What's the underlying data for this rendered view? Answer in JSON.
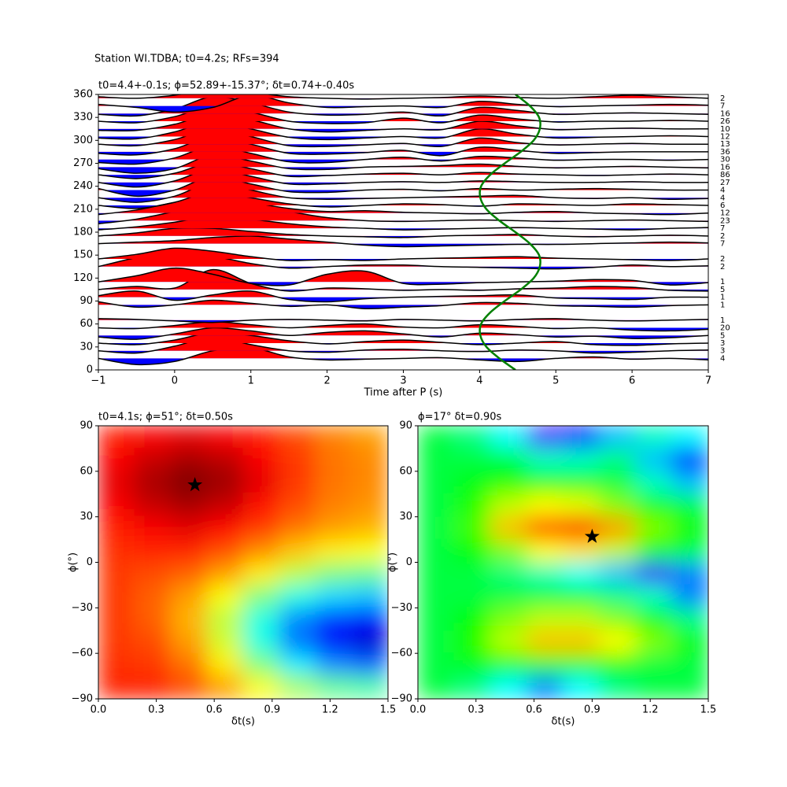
{
  "title": "Station WI.TDBA; t0=4.2s; RFs=394",
  "chart_data": [
    {
      "type": "wiggle",
      "title": "t0=4.4+-0.1s; ϕ=52.89+-15.37°; δt=0.74+-0.40s",
      "xlabel": "Time after P (s)",
      "xlim": [
        -1,
        7
      ],
      "ylim": [
        0,
        360
      ],
      "xticks": [
        {
          "value": -1,
          "label": "−1"
        },
        0,
        1,
        2,
        3,
        4,
        5,
        6,
        7
      ],
      "yticks": [
        0,
        30,
        60,
        90,
        120,
        150,
        180,
        210,
        240,
        270,
        300,
        330,
        360
      ],
      "positive_color": "#ff0000",
      "negative_color": "#0000ff",
      "x": [
        -1,
        -0.5,
        0,
        0.5,
        1,
        1.5,
        2,
        2.5,
        3,
        3.5,
        4,
        4.5,
        5,
        5.5,
        6,
        6.5,
        7
      ],
      "traces": [
        {
          "baz": 15,
          "count": 4,
          "values": [
            0,
            -8,
            -4,
            10,
            14,
            2,
            -2,
            -1,
            0,
            1,
            -2,
            -4,
            0,
            2,
            -1,
            0,
            -2
          ]
        },
        {
          "baz": 25,
          "count": 3,
          "values": [
            0,
            -3,
            6,
            18,
            8,
            0,
            -2,
            1,
            2,
            0,
            -1,
            1,
            0,
            -3,
            -2,
            0,
            1
          ]
        },
        {
          "baz": 35,
          "count": 3,
          "values": [
            0,
            -2,
            4,
            14,
            10,
            3,
            -1,
            2,
            4,
            1,
            -2,
            0,
            2,
            -2,
            -3,
            -1,
            0
          ]
        },
        {
          "baz": 45,
          "count": 5,
          "values": [
            -2,
            -5,
            2,
            10,
            6,
            0,
            4,
            6,
            2,
            -2,
            3,
            1,
            -2,
            -1,
            -4,
            -3,
            0
          ]
        },
        {
          "baz": 55,
          "count": 20,
          "values": [
            0,
            -1,
            3,
            8,
            4,
            0,
            3,
            5,
            1,
            0,
            4,
            2,
            -1,
            0,
            -3,
            -4,
            -2
          ]
        },
        {
          "baz": 65,
          "count": 1,
          "values": [
            2,
            1,
            -1,
            -3,
            0,
            1,
            0,
            -1,
            1,
            0,
            -1,
            1,
            2,
            0,
            -1,
            0,
            1
          ]
        },
        {
          "baz": 85,
          "count": 1,
          "values": [
            4,
            -3,
            0,
            6,
            2,
            -2,
            0,
            -5,
            -3,
            -1,
            3,
            2,
            -1,
            -2,
            -3,
            -1,
            0
          ]
        },
        {
          "baz": 95,
          "count": 1,
          "values": [
            2,
            8,
            -4,
            3,
            8,
            -3,
            -6,
            -2,
            0,
            1,
            2,
            3,
            -1,
            -2,
            -3,
            0,
            0
          ]
        },
        {
          "baz": 105,
          "count": 5,
          "values": [
            0,
            4,
            2,
            26,
            8,
            -2,
            2,
            1,
            -1,
            0,
            -1,
            1,
            2,
            4,
            3,
            -1,
            -2
          ]
        },
        {
          "baz": 115,
          "count": 1,
          "values": [
            0,
            8,
            18,
            10,
            -2,
            -4,
            10,
            14,
            -2,
            -3,
            -1,
            0,
            1,
            3,
            2,
            -4,
            -1
          ]
        },
        {
          "baz": 135,
          "count": 2,
          "values": [
            0,
            12,
            22,
            14,
            4,
            -2,
            0,
            2,
            2,
            0,
            -1,
            -2,
            -3,
            -1,
            2,
            0,
            1
          ]
        },
        {
          "baz": 145,
          "count": 2,
          "values": [
            0,
            6,
            14,
            10,
            3,
            -2,
            -1,
            -2,
            0,
            1,
            2,
            3,
            1,
            0,
            -1,
            -2,
            0
          ]
        },
        {
          "baz": 165,
          "count": 7,
          "values": [
            0,
            2,
            4,
            8,
            10,
            6,
            2,
            -2,
            -4,
            -3,
            -2,
            -1,
            -1,
            0,
            1,
            2,
            1
          ]
        },
        {
          "baz": 175,
          "count": 2,
          "values": [
            0,
            4,
            10,
            10,
            6,
            2,
            0,
            -1,
            -2,
            0,
            1,
            2,
            0,
            -1,
            0,
            1,
            0
          ]
        },
        {
          "baz": 185,
          "count": 7,
          "values": [
            -2,
            2,
            8,
            16,
            12,
            6,
            2,
            0,
            -2,
            -1,
            0,
            1,
            0,
            -1,
            -2,
            0,
            1
          ]
        },
        {
          "baz": 195,
          "count": 23,
          "values": [
            -4,
            2,
            12,
            22,
            20,
            12,
            4,
            0,
            -1,
            0,
            1,
            0,
            -1,
            0,
            1,
            0,
            -1
          ]
        },
        {
          "baz": 205,
          "count": 12,
          "values": [
            -2,
            4,
            14,
            22,
            14,
            6,
            2,
            3,
            1,
            0,
            -1,
            1,
            2,
            0,
            -1,
            -2,
            0
          ]
        },
        {
          "baz": 215,
          "count": 6,
          "values": [
            0,
            -4,
            4,
            18,
            10,
            2,
            -2,
            0,
            2,
            1,
            -1,
            2,
            1,
            0,
            2,
            1,
            0
          ]
        },
        {
          "baz": 225,
          "count": 4,
          "values": [
            0,
            -6,
            2,
            20,
            10,
            0,
            -2,
            -1,
            0,
            1,
            2,
            3,
            0,
            -1,
            0,
            -2,
            -1
          ]
        },
        {
          "baz": 235,
          "count": 4,
          "values": [
            2,
            -8,
            0,
            18,
            8,
            -2,
            -3,
            0,
            1,
            -1,
            2,
            0,
            1,
            2,
            1,
            0,
            0
          ]
        },
        {
          "baz": 245,
          "count": 27,
          "values": [
            0,
            -6,
            2,
            18,
            8,
            -2,
            -2,
            0,
            1,
            0,
            2,
            1,
            0,
            0,
            1,
            0,
            0
          ]
        },
        {
          "baz": 255,
          "count": 86,
          "values": [
            0,
            -5,
            2,
            16,
            8,
            -2,
            -1,
            1,
            2,
            0,
            3,
            1,
            0,
            -1,
            0,
            1,
            0
          ]
        },
        {
          "baz": 265,
          "count": 16,
          "values": [
            -2,
            -8,
            -2,
            16,
            8,
            -2,
            -3,
            0,
            1,
            2,
            4,
            1,
            -1,
            0,
            1,
            0,
            -1
          ]
        },
        {
          "baz": 275,
          "count": 30,
          "values": [
            -4,
            -6,
            2,
            18,
            8,
            -3,
            -4,
            0,
            3,
            -2,
            4,
            2,
            -1,
            0,
            0,
            -1,
            0
          ]
        },
        {
          "baz": 285,
          "count": 36,
          "values": [
            -2,
            -4,
            4,
            20,
            10,
            -2,
            -3,
            -1,
            2,
            -5,
            6,
            2,
            -2,
            -1,
            0,
            0,
            0
          ]
        },
        {
          "baz": 295,
          "count": 13,
          "values": [
            0,
            -2,
            6,
            20,
            10,
            -2,
            -3,
            -1,
            1,
            -3,
            8,
            2,
            -1,
            0,
            1,
            0,
            0
          ]
        },
        {
          "baz": 305,
          "count": 12,
          "values": [
            -2,
            -3,
            6,
            20,
            10,
            -1,
            -4,
            -2,
            0,
            -2,
            10,
            3,
            -2,
            -1,
            0,
            1,
            0
          ]
        },
        {
          "baz": 315,
          "count": 10,
          "values": [
            -2,
            -2,
            6,
            20,
            12,
            0,
            -4,
            -2,
            0,
            -1,
            10,
            4,
            -1,
            0,
            1,
            0,
            0
          ]
        },
        {
          "baz": 325,
          "count": 26,
          "values": [
            0,
            -2,
            6,
            20,
            12,
            0,
            -3,
            -2,
            4,
            -2,
            8,
            3,
            -1,
            0,
            0,
            1,
            0
          ]
        },
        {
          "baz": 335,
          "count": 16,
          "values": [
            -1,
            -3,
            6,
            22,
            14,
            2,
            -2,
            -1,
            2,
            -3,
            8,
            4,
            -1,
            0,
            1,
            0,
            -1
          ]
        },
        {
          "baz": 345,
          "count": 7,
          "values": [
            2,
            -2,
            -8,
            -2,
            14,
            4,
            -2,
            -1,
            0,
            -2,
            6,
            2,
            -1,
            0,
            1,
            2,
            1
          ]
        },
        {
          "baz": 355,
          "count": 2,
          "values": [
            2,
            0,
            4,
            12,
            8,
            2,
            0,
            -1,
            0,
            1,
            3,
            1,
            0,
            2,
            4,
            2,
            0
          ]
        }
      ],
      "curve": {
        "color": "#008000",
        "x": [
          4.47,
          4.26,
          4.09,
          4.01,
          4.02,
          4.14,
          4.33,
          4.54,
          4.71,
          4.79,
          4.78,
          4.66,
          4.47,
          4.26,
          4.09,
          4.01,
          4.02,
          4.14,
          4.33,
          4.54,
          4.71,
          4.79,
          4.78,
          4.66,
          4.47
        ],
        "y": [
          0,
          15,
          30,
          45,
          60,
          75,
          90,
          105,
          120,
          135,
          150,
          165,
          180,
          195,
          210,
          225,
          240,
          255,
          270,
          285,
          300,
          315,
          330,
          345,
          360
        ]
      }
    },
    {
      "type": "heatmap",
      "colormap": "jet",
      "title": "t0=4.1s; ϕ=51°; δt=0.50s",
      "xlabel": "δt(s)",
      "ylabel": "ϕ(°)",
      "xlim": [
        0,
        1.5
      ],
      "ylim": [
        -90,
        90
      ],
      "xticks": [
        {
          "value": 0,
          "label": "0.0"
        },
        0.3,
        0.6,
        0.9,
        1.2,
        1.5
      ],
      "yticks": [
        {
          "value": -90,
          "label": "−90"
        },
        {
          "value": -60,
          "label": "−60"
        },
        {
          "value": -30,
          "label": "−30"
        },
        0,
        30,
        60,
        90
      ],
      "x": [
        0.09375,
        0.28125,
        0.46875,
        0.65625,
        0.84375,
        1.03125,
        1.21875,
        1.40625
      ],
      "y": [
        82.5,
        67.5,
        52.5,
        37.5,
        22.5,
        7.5,
        -7.5,
        -22.5,
        -37.5,
        -52.5,
        -67.5,
        -82.5
      ],
      "z": [
        [
          0.85,
          0.88,
          0.9,
          0.88,
          0.85,
          0.8,
          0.75,
          0.72
        ],
        [
          0.88,
          0.93,
          0.96,
          0.94,
          0.88,
          0.82,
          0.76,
          0.74
        ],
        [
          0.9,
          0.96,
          1.0,
          0.97,
          0.9,
          0.82,
          0.76,
          0.74
        ],
        [
          0.88,
          0.93,
          0.96,
          0.93,
          0.86,
          0.8,
          0.75,
          0.73
        ],
        [
          0.85,
          0.88,
          0.9,
          0.87,
          0.82,
          0.76,
          0.72,
          0.7
        ],
        [
          0.83,
          0.84,
          0.84,
          0.8,
          0.74,
          0.68,
          0.64,
          0.62
        ],
        [
          0.82,
          0.8,
          0.78,
          0.72,
          0.64,
          0.56,
          0.5,
          0.48
        ],
        [
          0.82,
          0.78,
          0.72,
          0.62,
          0.5,
          0.4,
          0.34,
          0.32
        ],
        [
          0.82,
          0.78,
          0.7,
          0.56,
          0.4,
          0.26,
          0.18,
          0.14
        ],
        [
          0.82,
          0.8,
          0.72,
          0.58,
          0.4,
          0.24,
          0.12,
          0.08
        ],
        [
          0.83,
          0.82,
          0.76,
          0.64,
          0.5,
          0.36,
          0.26,
          0.22
        ],
        [
          0.84,
          0.84,
          0.8,
          0.72,
          0.62,
          0.54,
          0.48,
          0.46
        ]
      ],
      "marker": {
        "x": 0.5,
        "y": 51,
        "color": "#000000"
      }
    },
    {
      "type": "heatmap",
      "colormap": "hsv",
      "title": "ϕ=17° δt=0.90s",
      "xlabel": "δt(s)",
      "ylabel": "ϕ(°)",
      "xlim": [
        0,
        1.5
      ],
      "ylim": [
        -90,
        90
      ],
      "xticks": [
        {
          "value": 0,
          "label": "0.0"
        },
        0.3,
        0.6,
        0.9,
        1.2,
        1.5
      ],
      "yticks": [
        {
          "value": -90,
          "label": "−90"
        },
        {
          "value": -60,
          "label": "−60"
        },
        {
          "value": -30,
          "label": "−30"
        },
        0,
        30,
        60,
        90
      ],
      "x": [
        0.09375,
        0.28125,
        0.46875,
        0.65625,
        0.84375,
        1.03125,
        1.21875,
        1.40625
      ],
      "y": [
        82.5,
        67.5,
        52.5,
        37.5,
        22.5,
        7.5,
        -7.5,
        -22.5,
        -37.5,
        -52.5,
        -67.5,
        -82.5
      ],
      "z": [
        [
          0.55,
          0.5,
          0.4,
          0.15,
          0.2,
          0.35,
          0.45,
          0.4
        ],
        [
          0.55,
          0.55,
          0.55,
          0.45,
          0.45,
          0.5,
          0.35,
          0.2
        ],
        [
          0.55,
          0.58,
          0.6,
          0.6,
          0.58,
          0.55,
          0.45,
          0.35
        ],
        [
          0.55,
          0.62,
          0.75,
          0.8,
          0.78,
          0.7,
          0.6,
          0.55
        ],
        [
          0.55,
          0.65,
          0.85,
          0.95,
          1.0,
          0.88,
          0.7,
          0.6
        ],
        [
          0.55,
          0.6,
          0.7,
          0.8,
          0.82,
          0.75,
          0.6,
          0.55
        ],
        [
          0.55,
          0.55,
          0.5,
          0.45,
          0.4,
          0.35,
          0.15,
          0.3
        ],
        [
          0.55,
          0.55,
          0.55,
          0.55,
          0.55,
          0.5,
          0.45,
          0.3
        ],
        [
          0.55,
          0.6,
          0.7,
          0.75,
          0.75,
          0.7,
          0.6,
          0.5
        ],
        [
          0.55,
          0.62,
          0.75,
          0.85,
          0.85,
          0.8,
          0.7,
          0.6
        ],
        [
          0.55,
          0.58,
          0.6,
          0.62,
          0.62,
          0.6,
          0.55,
          0.55
        ],
        [
          0.55,
          0.5,
          0.4,
          0.3,
          0.4,
          0.5,
          0.55,
          0.55
        ]
      ],
      "marker": {
        "x": 0.9,
        "y": 17,
        "color": "#000000"
      }
    }
  ]
}
